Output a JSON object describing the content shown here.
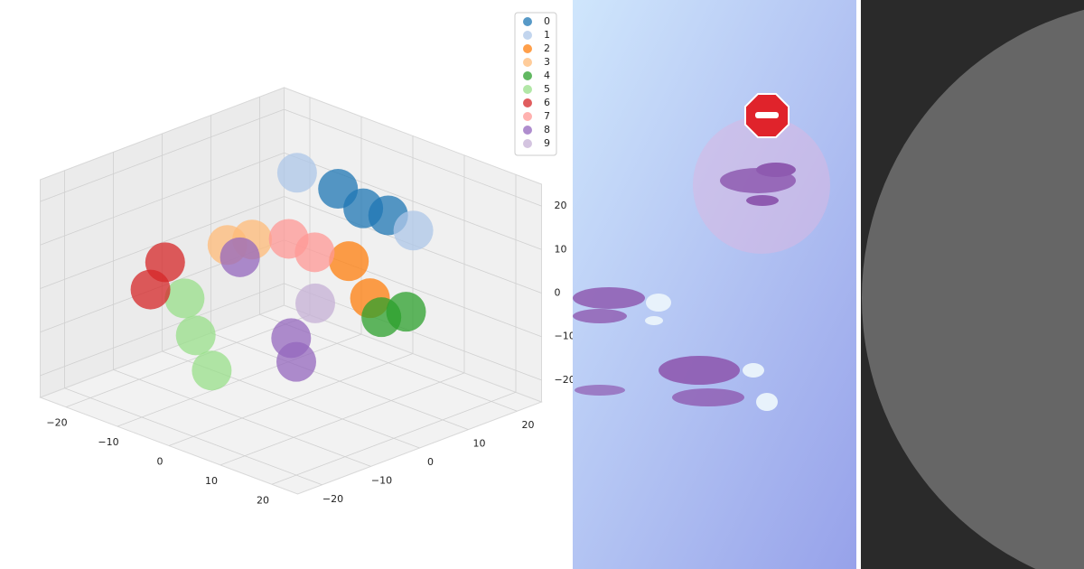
{
  "chart_data": {
    "type": "scatter3d",
    "xlim": [
      -25,
      25
    ],
    "ylim": [
      -25,
      25
    ],
    "zlim": [
      -25,
      25
    ],
    "xticks": [
      {
        "value": -20,
        "label": "−20"
      },
      {
        "value": -10,
        "label": "−10"
      },
      0,
      10,
      20
    ],
    "yticks": [
      {
        "value": -20,
        "label": "−20"
      },
      {
        "value": -10,
        "label": "−10"
      },
      0,
      10,
      20
    ],
    "zticks": [
      {
        "value": -20,
        "label": "−20"
      },
      {
        "value": -10,
        "label": "−10"
      },
      0,
      10,
      20
    ],
    "grid": true,
    "legend": "upper right",
    "series": [
      {
        "name": "0",
        "color": "#1f77b4",
        "x": [
          -3,
          -1,
          -6
        ],
        "y": [
          18,
          21,
          16
        ],
        "z": [
          10,
          8,
          14
        ]
      },
      {
        "name": "1",
        "color": "#aec7e8",
        "x": [
          -13,
          2
        ],
        "y": [
          15,
          23
        ],
        "z": [
          15,
          5
        ]
      },
      {
        "name": "2",
        "color": "#ff7f0e",
        "x": [
          -2,
          4
        ],
        "y": [
          14,
          12
        ],
        "z": [
          0,
          -5
        ]
      },
      {
        "name": "3",
        "color": "#ffbb78",
        "x": [
          -18,
          -17
        ],
        "y": [
          6,
          10
        ],
        "z": [
          0,
          0
        ]
      },
      {
        "name": "4",
        "color": "#2ca02c",
        "x": [
          10,
          11
        ],
        "y": [
          8,
          12
        ],
        "z": [
          -5,
          -5
        ]
      },
      {
        "name": "5",
        "color": "#98df8a",
        "x": [
          -9,
          -4,
          -14
        ],
        "y": [
          -10,
          -12,
          -7
        ],
        "z": [
          -10,
          -15,
          -5
        ]
      },
      {
        "name": "6",
        "color": "#d62728",
        "x": [
          -14,
          -14
        ],
        "y": [
          -11,
          -14
        ],
        "z": [
          5,
          0
        ]
      },
      {
        "name": "7",
        "color": "#ff9896",
        "x": [
          -8,
          -2
        ],
        "y": [
          8,
          7
        ],
        "z": [
          5,
          5
        ]
      },
      {
        "name": "8",
        "color": "#9467bd",
        "x": [
          1,
          -8,
          2
        ],
        "y": [
          -1,
          -2,
          -1
        ],
        "z": [
          -10,
          5,
          -15
        ]
      },
      {
        "name": "9",
        "color": "#c5b0d5",
        "x": [
          0
        ],
        "y": [
          5
        ],
        "z": [
          -5
        ]
      }
    ]
  }
}
